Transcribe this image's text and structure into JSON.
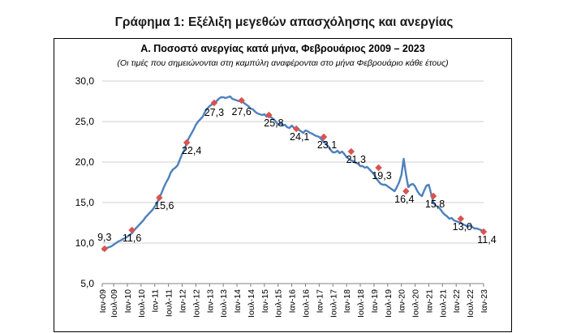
{
  "page": {
    "title": "Γράφημα 1: Εξέλιξη μεγεθών απασχόλησης και ανεργίας"
  },
  "chart_data": {
    "type": "line",
    "title": "Α. Ποσοστό ανεργίας κατά μήνα, Φεβρουάριος 2009 – 2023",
    "subtitle": "(Οι τιμές που σημειώνονται στη καμπύλη αναφέρονται στο μήνα Φεβρουάριο κάθε έτους)",
    "xlabel": "",
    "ylabel": "",
    "ylim": [
      5,
      30
    ],
    "yticks": [
      "5,0",
      "10,0",
      "15,0",
      "20,0",
      "25,0",
      "30,0"
    ],
    "grid": true,
    "line_color": "#4f81bd",
    "marker_color": "#d9534f",
    "x_tick_labels": [
      "Ιαν-09",
      "Ιουλ-09",
      "Ιαν-10",
      "Ιουλ-10",
      "Ιαν-11",
      "Ιουλ-11",
      "Ιαν-12",
      "Ιουλ-12",
      "Ιαν-13",
      "Ιουλ-13",
      "Ιαν-14",
      "Ιουλ-14",
      "Ιαν-15",
      "Ιουλ-15",
      "Ιαν-16",
      "Ιουλ-16",
      "Ιαν-17",
      "Ιουλ-17",
      "Ιαν-18",
      "Ιουλ-18",
      "Ιαν-19",
      "Ιουλ-19",
      "Ιαν-20",
      "Ιουλ-20",
      "Ιαν-21",
      "Ιουλ-21",
      "Ιαν-22",
      "Ιουλ-22",
      "Ιαν-23"
    ],
    "series": [
      {
        "values": [
          9.1,
          9.3,
          9.4,
          9.5,
          9.6,
          9.8,
          10.0,
          10.2,
          10.3,
          10.5,
          10.6,
          10.8,
          11.0,
          11.2,
          11.6,
          11.9,
          12.2,
          12.5,
          12.8,
          13.2,
          13.5,
          13.8,
          14.1,
          14.5,
          15.0,
          15.6,
          16.2,
          16.9,
          17.5,
          18.0,
          18.7,
          19.1,
          19.3,
          19.6,
          20.3,
          21.0,
          21.5,
          22.4,
          23.0,
          23.5,
          24.0,
          24.6,
          25.0,
          25.3,
          25.6,
          26.2,
          26.6,
          26.9,
          27.1,
          27.3,
          27.5,
          27.8,
          28.0,
          28.0,
          27.9,
          28.0,
          28.1,
          27.8,
          27.7,
          27.6,
          27.5,
          27.6,
          27.3,
          27.1,
          26.9,
          26.6,
          26.5,
          26.2,
          26.0,
          25.9,
          25.8,
          25.9,
          25.6,
          25.8,
          25.5,
          25.3,
          25.0,
          24.6,
          24.8,
          24.5,
          24.6,
          24.3,
          24.2,
          24.5,
          24.2,
          24.1,
          24.0,
          23.8,
          23.6,
          23.9,
          23.8,
          23.6,
          23.5,
          23.3,
          23.2,
          23.1,
          22.8,
          22.5,
          22.3,
          21.9,
          21.5,
          21.2,
          21.2,
          21.4,
          21.1,
          21.3,
          21.0,
          20.6,
          20.4,
          20.2,
          20.1,
          19.9,
          19.8,
          19.5,
          19.5,
          19.3,
          19.4,
          19.1,
          18.8,
          18.5,
          18.0,
          17.6,
          17.3,
          17.2,
          17.2,
          17.0,
          16.8,
          16.6,
          16.4,
          16.9,
          17.5,
          18.4,
          20.4,
          18.5,
          16.9,
          17.2,
          17.3,
          17.0,
          16.4,
          16.0,
          15.8,
          16.5,
          17.1,
          17.2,
          16.1,
          15.0,
          14.6,
          14.5,
          14.2,
          13.8,
          13.5,
          13.3,
          13.0,
          13.1,
          12.8,
          12.7,
          12.6,
          12.5,
          12.3,
          12.2,
          12.0,
          12.2,
          12.0,
          11.8,
          11.8,
          11.7,
          11.6,
          11.4
        ]
      }
    ],
    "highlighted_points": [
      {
        "label": "Φεβ-09",
        "value": 9.3,
        "text": "9,3"
      },
      {
        "label": "Φεβ-10",
        "value": 11.6,
        "text": "11,6"
      },
      {
        "label": "Φεβ-11",
        "value": 15.6,
        "text": "15,6"
      },
      {
        "label": "Φεβ-12",
        "value": 22.4,
        "text": "22,4"
      },
      {
        "label": "Φεβ-13",
        "value": 27.3,
        "text": "27,3"
      },
      {
        "label": "Φεβ-14",
        "value": 27.6,
        "text": "27,6"
      },
      {
        "label": "Φεβ-15",
        "value": 25.8,
        "text": "25,8"
      },
      {
        "label": "Φεβ-16",
        "value": 24.1,
        "text": "24,1"
      },
      {
        "label": "Φεβ-17",
        "value": 23.1,
        "text": "23,1"
      },
      {
        "label": "Φεβ-18",
        "value": 21.3,
        "text": "21,3"
      },
      {
        "label": "Φεβ-19",
        "value": 19.3,
        "text": "19,3"
      },
      {
        "label": "Φεβ-20",
        "value": 16.4,
        "text": "16,4"
      },
      {
        "label": "Φεβ-21",
        "value": 15.8,
        "text": "15,8"
      },
      {
        "label": "Φεβ-22",
        "value": 13.0,
        "text": "13,0"
      },
      {
        "label": "Φεβ-23",
        "value": 11.4,
        "text": "11,4"
      }
    ]
  }
}
